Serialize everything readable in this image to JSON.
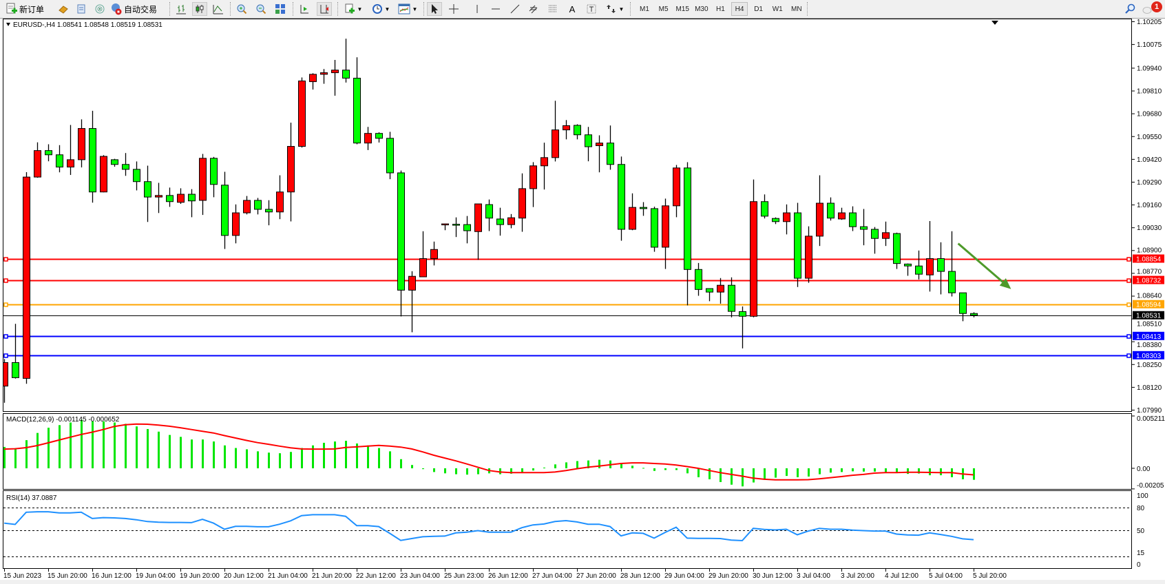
{
  "toolbar": {
    "new_order_label": "新订单",
    "auto_trade_label": "自动交易",
    "timeframes": [
      "M1",
      "M5",
      "M15",
      "M30",
      "H1",
      "H4",
      "D1",
      "W1",
      "MN"
    ],
    "active_timeframe": "H4",
    "notification_count": "1"
  },
  "chart": {
    "header": "EURUSD-,H4  1.08541 1.08548 1.08519 1.08531",
    "macd_label": "MACD(12,26,9) -0.001145 -0.000652",
    "rsi_label": "RSI(14) 37.0887",
    "price_axis_labels": [
      "1.10205",
      "1.10075",
      "1.09940",
      "1.09810",
      "1.09680",
      "1.09550",
      "1.09420",
      "1.09290",
      "1.09160",
      "1.09030",
      "1.08900",
      "1.08770",
      "1.08640",
      "1.08510",
      "1.08380",
      "1.08250",
      "1.08120",
      "1.07990"
    ],
    "macd_axis_labels": [
      "0.005211",
      "0.00",
      "-0.00205"
    ],
    "rsi_axis_labels": [
      "100",
      "80",
      "50",
      "15",
      "0"
    ],
    "time_labels": [
      "15 Jun 2023",
      "15 Jun 20:00",
      "16 Jun 12:00",
      "19 Jun 04:00",
      "19 Jun 20:00",
      "20 Jun 12:00",
      "21 Jun 04:00",
      "21 Jun 20:00",
      "22 Jun 12:00",
      "23 Jun 04:00",
      "25 Jun 23:00",
      "26 Jun 12:00",
      "27 Jun 04:00",
      "27 Jun 20:00",
      "28 Jun 12:00",
      "29 Jun 04:00",
      "29 Jun 20:00",
      "30 Jun 12:00",
      "3 Jul 04:00",
      "3 Jul 20:00",
      "4 Jul 12:00",
      "5 Jul 04:00",
      "5 Jul 20:00"
    ],
    "horizontal_lines": [
      {
        "price": 1.08854,
        "label": "1.08854",
        "color": "#ff0000"
      },
      {
        "price": 1.08732,
        "label": "1.08732",
        "color": "#ff0000"
      },
      {
        "price": 1.08594,
        "label": "1.08594",
        "color": "#ffa500"
      },
      {
        "price": 1.08531,
        "label": "1.08531",
        "color": "#000000",
        "bid": true
      },
      {
        "price": 1.08413,
        "label": "1.08413",
        "color": "#0000ff"
      },
      {
        "price": 1.08303,
        "label": "1.08303",
        "color": "#0000ff"
      }
    ],
    "colors": {
      "bull": "#ff0000",
      "bear": "#00ff00",
      "macd_hist": "#00e600",
      "macd_signal": "#ff0000",
      "rsi": "#1e90ff",
      "arrow": "#4e9a2a"
    },
    "arrow": {
      "from_price": 1.0894,
      "to_price": 1.0868,
      "from_bar": 86.6,
      "to_bar": 91.4
    }
  },
  "chart_data": {
    "type": "candlestick",
    "symbol": "EURUSD-",
    "timeframe": "H4",
    "ylim": [
      1.0799,
      1.10205
    ],
    "ohlc_fields": [
      "open",
      "high",
      "low",
      "close"
    ],
    "candles": [
      [
        1.08127,
        1.08281,
        1.08032,
        1.08261
      ],
      [
        1.08261,
        1.08482,
        1.0817,
        1.08175
      ],
      [
        1.08171,
        1.09347,
        1.0814,
        1.09319
      ],
      [
        1.09319,
        1.09517,
        1.09315,
        1.0947
      ],
      [
        1.0947,
        1.09506,
        1.09409,
        1.09446
      ],
      [
        1.09446,
        1.09501,
        1.09346,
        1.09376
      ],
      [
        1.09376,
        1.09616,
        1.09331,
        1.09418
      ],
      [
        1.09418,
        1.09648,
        1.09374,
        1.09596
      ],
      [
        1.09596,
        1.09697,
        1.09173,
        1.09234
      ],
      [
        1.09234,
        1.09444,
        1.09232,
        1.09437
      ],
      [
        1.09418,
        1.09423,
        1.09378,
        1.09391
      ],
      [
        1.09391,
        1.09456,
        1.09326,
        1.09363
      ],
      [
        1.09363,
        1.09408,
        1.09243,
        1.09293
      ],
      [
        1.09293,
        1.09384,
        1.09063,
        1.09205
      ],
      [
        1.09205,
        1.09286,
        1.09114,
        1.09214
      ],
      [
        1.09214,
        1.09259,
        1.09149,
        1.09179
      ],
      [
        1.09175,
        1.09255,
        1.09166,
        1.09221
      ],
      [
        1.09221,
        1.0925,
        1.0909,
        1.09183
      ],
      [
        1.09186,
        1.09451,
        1.09103,
        1.09426
      ],
      [
        1.09426,
        1.09434,
        1.09204,
        1.09277
      ],
      [
        1.09273,
        1.09349,
        1.08909,
        1.08986
      ],
      [
        1.08986,
        1.09163,
        1.08941,
        1.09115
      ],
      [
        1.09115,
        1.09211,
        1.09106,
        1.09186
      ],
      [
        1.09186,
        1.092,
        1.09106,
        1.09135
      ],
      [
        1.09135,
        1.09187,
        1.09044,
        1.0912
      ],
      [
        1.0912,
        1.09329,
        1.09079,
        1.09234
      ],
      [
        1.09234,
        1.09629,
        1.09066,
        1.09494
      ],
      [
        1.09494,
        1.09887,
        1.09487,
        1.09867
      ],
      [
        1.09863,
        1.09911,
        1.09818,
        1.09905
      ],
      [
        1.09905,
        1.09935,
        1.09851,
        1.09914
      ],
      [
        1.09914,
        1.09987,
        1.09783,
        1.09929
      ],
      [
        1.09929,
        1.10108,
        1.09858,
        1.09883
      ],
      [
        1.09883,
        1.10002,
        1.09506,
        1.09513
      ],
      [
        1.09513,
        1.09605,
        1.09473,
        1.09568
      ],
      [
        1.09568,
        1.09574,
        1.09516,
        1.0954
      ],
      [
        1.0954,
        1.09577,
        1.09307,
        1.09343
      ],
      [
        1.09343,
        1.09356,
        1.08524,
        1.08674
      ],
      [
        1.08674,
        1.08782,
        1.08434,
        1.08753
      ],
      [
        1.0875,
        1.0901,
        1.0875,
        1.08854
      ],
      [
        1.08854,
        1.08951,
        1.08815,
        1.08906
      ],
      [
        1.0905,
        1.09053,
        1.09016,
        1.09052
      ],
      [
        1.0905,
        1.09089,
        1.08977,
        1.09046
      ],
      [
        1.09048,
        1.09097,
        1.08941,
        1.09013
      ],
      [
        1.09008,
        1.09166,
        1.08847,
        1.09166
      ],
      [
        1.09162,
        1.09191,
        1.09011,
        1.09085
      ],
      [
        1.0908,
        1.09144,
        1.08985,
        1.09048
      ],
      [
        1.09048,
        1.09108,
        1.09027,
        1.09087
      ],
      [
        1.09085,
        1.0934,
        1.09007,
        1.09253
      ],
      [
        1.09253,
        1.09404,
        1.09148,
        1.09383
      ],
      [
        1.09383,
        1.09515,
        1.09248,
        1.0943
      ],
      [
        1.0943,
        1.09754,
        1.09408,
        1.09588
      ],
      [
        1.09588,
        1.09644,
        1.09534,
        1.09612
      ],
      [
        1.09614,
        1.0962,
        1.09534,
        1.0956
      ],
      [
        1.0956,
        1.09605,
        1.09409,
        1.09492
      ],
      [
        1.09498,
        1.09557,
        1.09346,
        1.09513
      ],
      [
        1.09513,
        1.09613,
        1.09361,
        1.09391
      ],
      [
        1.09391,
        1.09436,
        1.08956,
        1.09021
      ],
      [
        1.09021,
        1.09226,
        1.09016,
        1.09146
      ],
      [
        1.09146,
        1.09176,
        1.09098,
        1.09139
      ],
      [
        1.09139,
        1.0915,
        1.08893,
        1.08919
      ],
      [
        1.08919,
        1.09196,
        1.08795,
        1.09155
      ],
      [
        1.09155,
        1.09388,
        1.0909,
        1.09371
      ],
      [
        1.09371,
        1.09404,
        1.08587,
        1.08792
      ],
      [
        1.08792,
        1.08829,
        1.08642,
        1.08678
      ],
      [
        1.08683,
        1.08683,
        1.08611,
        1.08663
      ],
      [
        1.08663,
        1.08743,
        1.08597,
        1.08702
      ],
      [
        1.08702,
        1.08747,
        1.08519,
        1.08553
      ],
      [
        1.08552,
        1.08581,
        1.08342,
        1.08525
      ],
      [
        1.08525,
        1.09305,
        1.08519,
        1.09179
      ],
      [
        1.09179,
        1.0922,
        1.09083,
        1.09096
      ],
      [
        1.09083,
        1.09089,
        1.09051,
        1.09065
      ],
      [
        1.09065,
        1.09163,
        1.08992,
        1.09115
      ],
      [
        1.09115,
        1.09172,
        1.08692,
        1.08742
      ],
      [
        1.08742,
        1.09038,
        1.08716,
        1.08982
      ],
      [
        1.08982,
        1.09329,
        1.08926,
        1.0917
      ],
      [
        1.0917,
        1.09203,
        1.09071,
        1.09085
      ],
      [
        1.0908,
        1.09144,
        1.09075,
        1.09115
      ],
      [
        1.09115,
        1.09152,
        1.09011,
        1.09036
      ],
      [
        1.09036,
        1.09137,
        1.0893,
        1.09021
      ],
      [
        1.09021,
        1.09034,
        1.08882,
        1.08969
      ],
      [
        1.08969,
        1.09065,
        1.08926,
        1.09002
      ],
      [
        1.08997,
        1.09002,
        1.08795,
        1.08826
      ],
      [
        1.08823,
        1.08826,
        1.08756,
        1.08812
      ],
      [
        1.08812,
        1.089,
        1.08735,
        1.08765
      ],
      [
        1.08761,
        1.09068,
        1.08666,
        1.08854
      ],
      [
        1.08854,
        1.08947,
        1.0865,
        1.08781
      ],
      [
        1.08781,
        1.0901,
        1.08638,
        1.08659
      ],
      [
        1.08659,
        1.08659,
        1.08497,
        1.08541
      ],
      [
        1.08541,
        1.08548,
        1.08519,
        1.08531
      ]
    ],
    "macd": {
      "params": "12,26,9",
      "ylim": [
        -0.00205,
        0.005211
      ],
      "histogram": [
        0.00213,
        0.002,
        0.0028,
        0.00352,
        0.00404,
        0.0043,
        0.00456,
        0.00482,
        0.00467,
        0.00467,
        0.00456,
        0.00443,
        0.00417,
        0.00391,
        0.00365,
        0.00332,
        0.00313,
        0.00287,
        0.00287,
        0.00267,
        0.00228,
        0.00202,
        0.00189,
        0.00169,
        0.00156,
        0.0015,
        0.00163,
        0.00202,
        0.00228,
        0.00254,
        0.00267,
        0.00274,
        0.00247,
        0.00228,
        0.00202,
        0.00169,
        0.00091,
        0.00033,
        -8e-05,
        -0.00037,
        -0.0005,
        -0.00059,
        -0.00063,
        -0.00059,
        -0.0005,
        -0.00059,
        -0.00054,
        -0.00037,
        -0.00022,
        7e-05,
        0.00039,
        0.00059,
        0.00072,
        0.00078,
        0.00085,
        0.00078,
        0.0005,
        0.00026,
        4e-05,
        -0.00026,
        -0.00017,
        -0.00017,
        -0.0005,
        -0.00089,
        -0.00109,
        -0.00137,
        -0.00163,
        -0.0018,
        -0.00141,
        -0.00115,
        -0.00093,
        -0.00076,
        -0.00089,
        -0.00082,
        -0.00059,
        -0.00043,
        -0.00037,
        -0.0003,
        -0.00033,
        -0.00033,
        -0.00043,
        -0.00039,
        -0.00056,
        -0.00052,
        -0.00069,
        -0.00069,
        -0.00089,
        -0.00109,
        -0.001145
      ],
      "signal": [
        0.00191,
        0.00195,
        0.00206,
        0.00226,
        0.00254,
        0.00282,
        0.0031,
        0.00337,
        0.0036,
        0.00386,
        0.00417,
        0.00434,
        0.00441,
        0.00439,
        0.0043,
        0.00419,
        0.00404,
        0.00386,
        0.00369,
        0.00352,
        0.00326,
        0.00302,
        0.00278,
        0.00256,
        0.00239,
        0.00221,
        0.00204,
        0.00193,
        0.00191,
        0.00191,
        0.00193,
        0.00208,
        0.00213,
        0.00221,
        0.00228,
        0.00221,
        0.00211,
        0.00193,
        0.00163,
        0.0013,
        0.00102,
        0.00074,
        0.00043,
        0.00011,
        -0.00022,
        -0.00037,
        -0.00043,
        -0.00043,
        -0.00043,
        -0.00043,
        -0.00037,
        -0.00022,
        -4e-05,
        0.00011,
        0.00022,
        0.00035,
        0.00048,
        0.00054,
        0.00054,
        0.00048,
        0.00043,
        0.00033,
        0.00017,
        0.0,
        -0.00022,
        -0.00043,
        -0.00061,
        -0.00078,
        -0.00098,
        -0.00109,
        -0.00115,
        -0.00115,
        -0.00115,
        -0.00113,
        -0.00104,
        -0.00093,
        -0.00082,
        -0.00069,
        -0.00061,
        -0.00048,
        -0.00043,
        -0.00043,
        -0.00039,
        -0.00039,
        -0.00041,
        -0.00043,
        -0.00043,
        -0.00056,
        -0.000652
      ]
    },
    "rsi": {
      "period": 14,
      "ylim": [
        0,
        100
      ],
      "levels": [
        80,
        50,
        15
      ],
      "values": [
        59.1,
        57.3,
        73.6,
        74.2,
        74.2,
        72.7,
        72.7,
        73.6,
        65.2,
        66.4,
        66.1,
        65.2,
        63.6,
        61.2,
        60.3,
        60.0,
        60.0,
        59.7,
        64.2,
        59.1,
        50.9,
        54.8,
        54.8,
        54.2,
        54.2,
        57.6,
        62.1,
        69.1,
        70.3,
        70.3,
        70.3,
        68.2,
        55.8,
        55.8,
        54.5,
        45.5,
        36.1,
        38.5,
        40.9,
        41.5,
        41.8,
        46.1,
        47.0,
        49.1,
        47.0,
        47.0,
        47.0,
        53.0,
        56.7,
        57.9,
        61.2,
        62.4,
        60.6,
        57.6,
        57.6,
        54.5,
        42.1,
        46.1,
        45.5,
        39.1,
        46.7,
        53.6,
        39.1,
        38.8,
        38.8,
        38.5,
        36.4,
        35.8,
        52.1,
        50.6,
        50.0,
        50.9,
        43.6,
        48.5,
        52.1,
        50.9,
        50.9,
        49.7,
        49.1,
        48.5,
        48.5,
        44.5,
        43.3,
        43.0,
        46.1,
        43.9,
        41.5,
        38.2,
        37.0887
      ]
    }
  }
}
